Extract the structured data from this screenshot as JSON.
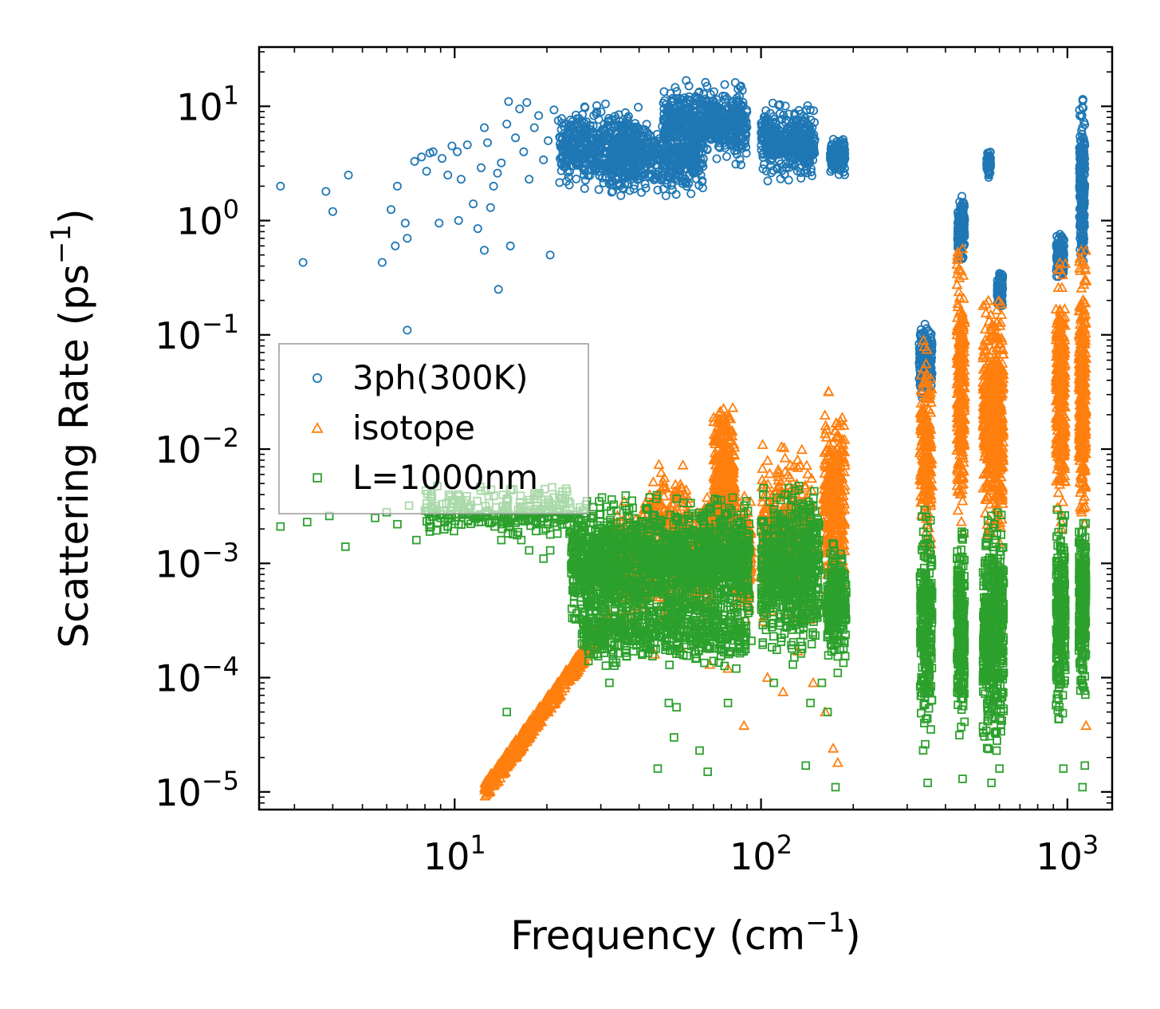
{
  "chart_data": {
    "type": "scatter",
    "title": "",
    "xlabel": "Frequency (cm",
    "xlabel_sup": "−1",
    "xlabel_end": ")",
    "ylabel": "Scattering Rate (ps",
    "ylabel_sup": "−1",
    "ylabel_end": ")",
    "xscale": "log",
    "yscale": "log",
    "xlim": [
      2.3,
      1400
    ],
    "ylim": [
      7e-06,
      33
    ],
    "x_ticks": [
      {
        "value": 10,
        "base": "10",
        "exp": "1"
      },
      {
        "value": 100,
        "base": "10",
        "exp": "2"
      },
      {
        "value": 1000,
        "base": "10",
        "exp": "3"
      }
    ],
    "y_ticks": [
      {
        "value": 10,
        "base": "10",
        "exp": "1"
      },
      {
        "value": 1,
        "base": "10",
        "exp": "0"
      },
      {
        "value": 0.1,
        "base": "10",
        "exp": "−1"
      },
      {
        "value": 0.01,
        "base": "10",
        "exp": "−2"
      },
      {
        "value": 0.001,
        "base": "10",
        "exp": "−3"
      },
      {
        "value": 0.0001,
        "base": "10",
        "exp": "−4"
      },
      {
        "value": 1e-05,
        "base": "10",
        "exp": "−5"
      }
    ],
    "legend_position": "center-left",
    "series": [
      {
        "name": "3ph(300K)",
        "marker": "circle",
        "color": "#1f77b4",
        "points": [
          [
            2.7,
            2.0
          ],
          [
            3.2,
            0.43
          ],
          [
            3.8,
            1.8
          ],
          [
            4.0,
            1.2
          ],
          [
            4.5,
            2.5
          ],
          [
            5.8,
            0.43
          ],
          [
            6.2,
            1.25
          ],
          [
            6.5,
            2.0
          ],
          [
            6.4,
            0.6
          ],
          [
            6.9,
            0.95
          ],
          [
            7.0,
            0.7
          ],
          [
            7.0,
            0.11
          ],
          [
            7.4,
            3.3
          ],
          [
            7.8,
            3.6
          ],
          [
            8.1,
            2.7
          ],
          [
            8.3,
            3.9
          ],
          [
            8.5,
            4.0
          ],
          [
            8.9,
            0.95
          ],
          [
            9.1,
            3.5
          ],
          [
            9.5,
            2.5
          ],
          [
            9.8,
            4.5
          ],
          [
            10.2,
            4.0
          ],
          [
            10.5,
            2.3
          ],
          [
            10.3,
            1.0
          ],
          [
            11.0,
            4.6
          ],
          [
            11.5,
            1.4
          ],
          [
            11.9,
            0.85
          ],
          [
            12.2,
            2.9
          ],
          [
            12.5,
            0.55
          ],
          [
            12.5,
            6.5
          ],
          [
            12.8,
            4.8
          ],
          [
            13.1,
            1.3
          ],
          [
            13.4,
            2.0
          ],
          [
            13.8,
            2.6
          ],
          [
            13.9,
            0.25
          ],
          [
            14.2,
            3.2
          ],
          [
            14.8,
            7.0
          ],
          [
            15.0,
            11.0
          ],
          [
            15.2,
            0.6
          ],
          [
            15.8,
            5.3
          ],
          [
            16.3,
            9.5
          ],
          [
            16.8,
            4.0
          ],
          [
            17.2,
            10.8
          ],
          [
            17.5,
            2.3
          ],
          [
            18.2,
            6.5
          ],
          [
            18.8,
            8.3
          ],
          [
            19.5,
            3.4
          ],
          [
            20.2,
            5.0
          ],
          [
            20.5,
            0.5
          ],
          [
            21.1,
            9.3
          ],
          [
            21.8,
            7.5
          ],
          [
            22.4,
            4.5
          ]
        ],
        "bands": [
          {
            "xmin": 22,
            "xmax": 40,
            "ymin": 1.7,
            "ymax": 11,
            "n": 500
          },
          {
            "xmin": 32,
            "xmax": 65,
            "ymin": 1.6,
            "ymax": 8,
            "n": 500
          },
          {
            "xmin": 48,
            "xmax": 90,
            "ymin": 3.0,
            "ymax": 17,
            "n": 600
          },
          {
            "xmin": 100,
            "xmax": 150,
            "ymin": 2.2,
            "ymax": 11,
            "n": 450
          },
          {
            "xmin": 168,
            "xmax": 188,
            "ymin": 2.4,
            "ymax": 5.5,
            "n": 140
          },
          {
            "xmin": 328,
            "xmax": 362,
            "ymin": 0.028,
            "ymax": 0.13,
            "n": 160
          },
          {
            "xmin": 438,
            "xmax": 462,
            "ymin": 0.45,
            "ymax": 1.8,
            "n": 170
          },
          {
            "xmin": 545,
            "xmax": 562,
            "ymin": 2.3,
            "ymax": 4.4,
            "n": 80
          },
          {
            "xmin": 590,
            "xmax": 615,
            "ymin": 0.16,
            "ymax": 0.37,
            "n": 90
          },
          {
            "xmin": 920,
            "xmax": 975,
            "ymin": 0.28,
            "ymax": 0.78,
            "n": 140
          },
          {
            "xmin": 1095,
            "xmax": 1140,
            "ymin": 0.35,
            "ymax": 11.5,
            "n": 240
          }
        ]
      },
      {
        "name": "isotope",
        "marker": "triangle",
        "color": "#ff7f0e",
        "points": [
          [
            37,
            0.00022
          ],
          [
            45,
            0.00016
          ],
          [
            55,
            0.00018
          ],
          [
            68,
            0.00013
          ],
          [
            78,
            0.00012
          ],
          [
            88,
            3.8e-05
          ],
          [
            105,
            0.0001
          ],
          [
            118,
            7.5e-05
          ],
          [
            132,
            0.00017
          ],
          [
            148,
            9e-05
          ],
          [
            162,
            5e-05
          ],
          [
            172,
            2.4e-05
          ],
          [
            178,
            1.8e-05
          ],
          [
            350,
            9e-05
          ],
          [
            1150,
            3.8e-05
          ]
        ],
        "bands": [
          {
            "xmin": 12.5,
            "xmax": 32,
            "ymin": 1e-05,
            "ymax": 0.00037,
            "n": 600,
            "shape": "powerlaw",
            "slope": 3.7
          },
          {
            "xmin": 33,
            "xmax": 43,
            "ymin": 0.0003,
            "ymax": 0.0038,
            "n": 250
          },
          {
            "xmin": 43,
            "xmax": 58,
            "ymin": 0.0003,
            "ymax": 0.008,
            "n": 300
          },
          {
            "xmin": 58,
            "xmax": 70,
            "ymin": 0.0003,
            "ymax": 0.0045,
            "n": 200
          },
          {
            "xmin": 70,
            "xmax": 82,
            "ymin": 0.001,
            "ymax": 0.025,
            "n": 400
          },
          {
            "xmin": 82,
            "xmax": 93,
            "ymin": 0.0003,
            "ymax": 0.004,
            "n": 200
          },
          {
            "xmin": 100,
            "xmax": 148,
            "ymin": 0.0003,
            "ymax": 0.011,
            "n": 400
          },
          {
            "xmin": 160,
            "xmax": 188,
            "ymin": 0.0004,
            "ymax": 0.032,
            "n": 300
          },
          {
            "xmin": 330,
            "xmax": 362,
            "ymin": 0.0012,
            "ymax": 0.09,
            "n": 200
          },
          {
            "xmin": 436,
            "xmax": 462,
            "ymin": 0.0016,
            "ymax": 0.6,
            "n": 260
          },
          {
            "xmin": 530,
            "xmax": 572,
            "ymin": 0.0015,
            "ymax": 0.2,
            "n": 260
          },
          {
            "xmin": 580,
            "xmax": 618,
            "ymin": 0.0015,
            "ymax": 0.2,
            "n": 240
          },
          {
            "xmin": 918,
            "xmax": 985,
            "ymin": 0.0018,
            "ymax": 0.45,
            "n": 300
          },
          {
            "xmin": 1090,
            "xmax": 1150,
            "ymin": 0.0018,
            "ymax": 0.55,
            "n": 300
          }
        ]
      },
      {
        "name": "L=1000nm",
        "marker": "square",
        "color": "#2ca02c",
        "points": [
          [
            2.7,
            0.0021
          ],
          [
            3.3,
            0.0023
          ],
          [
            3.9,
            0.0026
          ],
          [
            4.4,
            0.0014
          ],
          [
            5.5,
            0.0025
          ],
          [
            6.0,
            0.0028
          ],
          [
            6.5,
            0.0022
          ],
          [
            7.1,
            0.0032
          ],
          [
            7.5,
            0.0016
          ],
          [
            8.0,
            0.0029
          ],
          [
            9.0,
            0.0025
          ],
          [
            9.3,
            0.0023
          ],
          [
            10.3,
            0.0022
          ],
          [
            12.0,
            0.0023
          ],
          [
            13.5,
            0.0021
          ],
          [
            14.2,
            0.0016
          ],
          [
            15.5,
            0.0018
          ],
          [
            16.5,
            0.0016
          ],
          [
            17.5,
            0.0013
          ],
          [
            19.5,
            0.0011
          ],
          [
            20.5,
            0.0013
          ],
          [
            14.8,
            5e-05
          ],
          [
            32,
            9e-05
          ],
          [
            35,
            0.00025
          ],
          [
            38,
            0.00023
          ],
          [
            46,
            1.6e-05
          ],
          [
            50,
            6e-05
          ],
          [
            52,
            3e-05
          ],
          [
            53,
            5.5e-05
          ],
          [
            63,
            2.3e-05
          ],
          [
            67,
            1.5e-05
          ],
          [
            73,
            0.00022
          ],
          [
            78,
            6e-05
          ],
          [
            83,
            0.00012
          ],
          [
            93,
            0.00021
          ],
          [
            110,
            9e-05
          ],
          [
            127,
            0.00013
          ],
          [
            140,
            1.7e-05
          ],
          [
            145,
            6e-05
          ],
          [
            158,
            9e-05
          ],
          [
            165,
            5e-05
          ],
          [
            175,
            1.1e-05
          ],
          [
            178,
            0.00011
          ],
          [
            350,
            1.2e-05
          ],
          [
            455,
            1.3e-05
          ],
          [
            565,
            1.2e-05
          ],
          [
            600,
            1.6e-05
          ],
          [
            970,
            1.6e-05
          ],
          [
            1120,
            1.1e-05
          ],
          [
            1140,
            1.7e-05
          ]
        ],
        "bands": [
          {
            "xmin": 8,
            "xmax": 24,
            "ymin": 0.0016,
            "ymax": 0.005,
            "n": 260
          },
          {
            "xmin": 24,
            "xmax": 92,
            "ymin": 0.00025,
            "ymax": 0.004,
            "n": 1700
          },
          {
            "xmin": 26,
            "xmax": 90,
            "ymin": 0.00012,
            "ymax": 0.0005,
            "n": 500
          },
          {
            "xmin": 100,
            "xmax": 155,
            "ymin": 0.00015,
            "ymax": 0.005,
            "n": 700
          },
          {
            "xmin": 164,
            "xmax": 190,
            "ymin": 0.00013,
            "ymax": 0.0015,
            "n": 250
          },
          {
            "xmin": 330,
            "xmax": 362,
            "ymin": 2.2e-05,
            "ymax": 0.003,
            "n": 260
          },
          {
            "xmin": 436,
            "xmax": 462,
            "ymin": 3e-05,
            "ymax": 0.0025,
            "n": 260
          },
          {
            "xmin": 530,
            "xmax": 620,
            "ymin": 2e-05,
            "ymax": 0.003,
            "n": 480
          },
          {
            "xmin": 918,
            "xmax": 985,
            "ymin": 4e-05,
            "ymax": 0.003,
            "n": 260
          },
          {
            "xmin": 1090,
            "xmax": 1150,
            "ymin": 7e-05,
            "ymax": 0.0025,
            "n": 260
          }
        ]
      }
    ]
  }
}
